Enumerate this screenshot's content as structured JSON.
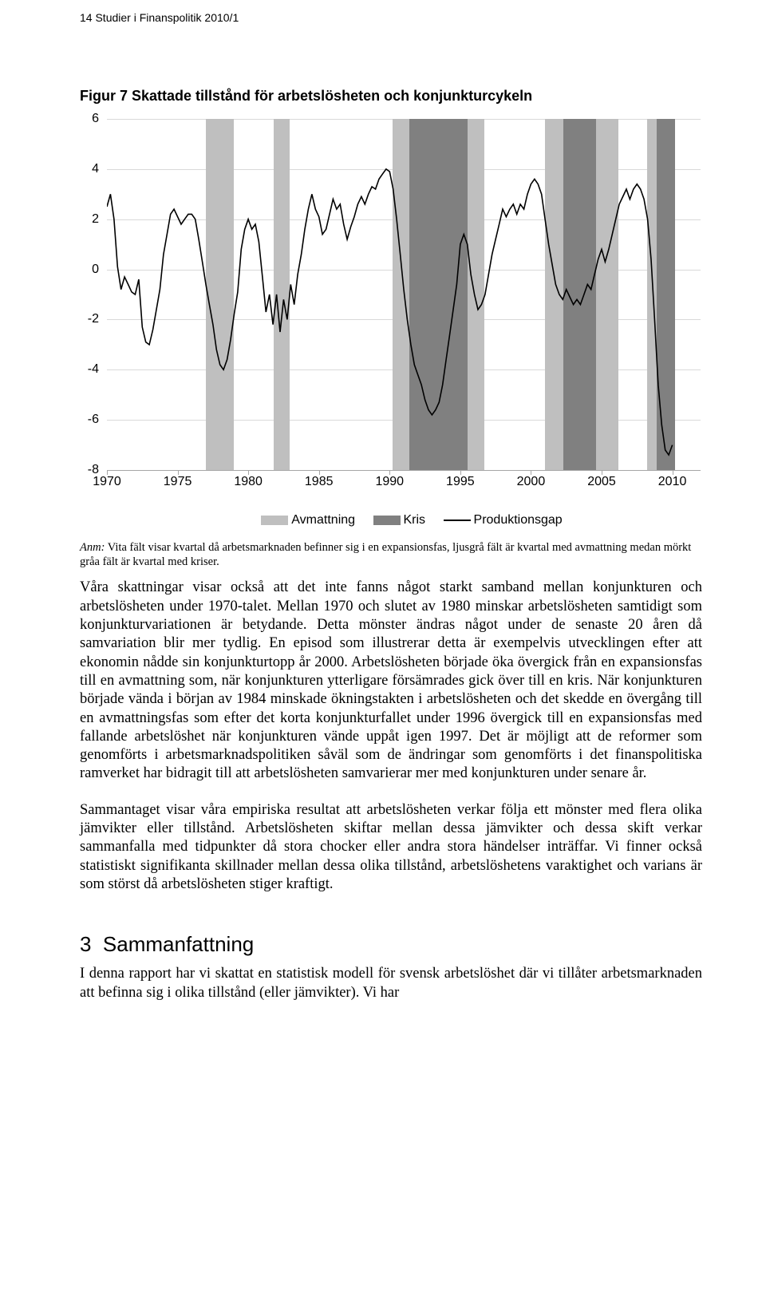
{
  "header": "14  Studier i Finanspolitik 2010/1",
  "figure": {
    "title": "Figur 7 Skattade tillstånd för arbetslösheten och konjunkturcykeln",
    "chart": {
      "type": "line-with-bands",
      "xlim": [
        1970,
        2012
      ],
      "ylim": [
        -8,
        6
      ],
      "yticks": [
        6,
        4,
        2,
        0,
        -2,
        -4,
        -6,
        -8
      ],
      "xticks": [
        1970,
        1975,
        1980,
        1985,
        1990,
        1995,
        2000,
        2005,
        2010
      ],
      "grid_color": "#d9d9d9",
      "axis_color": "#a6a6a6",
      "background_color": "#ffffff",
      "line_color": "#000000",
      "line_width": 1.6,
      "colors": {
        "avmattning": "#bfbfbf",
        "kris": "#808080"
      },
      "bands": [
        {
          "from": 1977.0,
          "to": 1979.0,
          "kind": "avmattning"
        },
        {
          "from": 1981.8,
          "to": 1982.9,
          "kind": "avmattning"
        },
        {
          "from": 1990.2,
          "to": 1991.4,
          "kind": "avmattning"
        },
        {
          "from": 1991.4,
          "to": 1995.5,
          "kind": "kris"
        },
        {
          "from": 1995.5,
          "to": 1996.7,
          "kind": "avmattning"
        },
        {
          "from": 2001.0,
          "to": 2002.3,
          "kind": "avmattning"
        },
        {
          "from": 2002.3,
          "to": 2004.6,
          "kind": "kris"
        },
        {
          "from": 2004.6,
          "to": 2006.2,
          "kind": "avmattning"
        },
        {
          "from": 2008.2,
          "to": 2008.9,
          "kind": "avmattning"
        },
        {
          "from": 2008.9,
          "to": 2010.2,
          "kind": "kris"
        }
      ],
      "series": [
        {
          "x": 1970.0,
          "y": 2.5
        },
        {
          "x": 1970.25,
          "y": 3.0
        },
        {
          "x": 1970.5,
          "y": 2.0
        },
        {
          "x": 1970.75,
          "y": 0.1
        },
        {
          "x": 1971.0,
          "y": -0.8
        },
        {
          "x": 1971.25,
          "y": -0.3
        },
        {
          "x": 1971.5,
          "y": -0.6
        },
        {
          "x": 1971.75,
          "y": -0.9
        },
        {
          "x": 1972.0,
          "y": -1.0
        },
        {
          "x": 1972.25,
          "y": -0.4
        },
        {
          "x": 1972.5,
          "y": -2.3
        },
        {
          "x": 1972.75,
          "y": -2.9
        },
        {
          "x": 1973.0,
          "y": -3.0
        },
        {
          "x": 1973.25,
          "y": -2.4
        },
        {
          "x": 1973.5,
          "y": -1.6
        },
        {
          "x": 1973.75,
          "y": -0.8
        },
        {
          "x": 1974.0,
          "y": 0.6
        },
        {
          "x": 1974.25,
          "y": 1.4
        },
        {
          "x": 1974.5,
          "y": 2.2
        },
        {
          "x": 1974.75,
          "y": 2.4
        },
        {
          "x": 1975.0,
          "y": 2.1
        },
        {
          "x": 1975.25,
          "y": 1.8
        },
        {
          "x": 1975.5,
          "y": 2.0
        },
        {
          "x": 1975.75,
          "y": 2.2
        },
        {
          "x": 1976.0,
          "y": 2.2
        },
        {
          "x": 1976.25,
          "y": 2.0
        },
        {
          "x": 1976.5,
          "y": 1.2
        },
        {
          "x": 1976.75,
          "y": 0.3
        },
        {
          "x": 1977.0,
          "y": -0.6
        },
        {
          "x": 1977.25,
          "y": -1.4
        },
        {
          "x": 1977.5,
          "y": -2.2
        },
        {
          "x": 1977.75,
          "y": -3.2
        },
        {
          "x": 1978.0,
          "y": -3.8
        },
        {
          "x": 1978.25,
          "y": -4.0
        },
        {
          "x": 1978.5,
          "y": -3.6
        },
        {
          "x": 1978.75,
          "y": -2.8
        },
        {
          "x": 1979.0,
          "y": -1.8
        },
        {
          "x": 1979.25,
          "y": -0.9
        },
        {
          "x": 1979.5,
          "y": 0.8
        },
        {
          "x": 1979.75,
          "y": 1.6
        },
        {
          "x": 1980.0,
          "y": 2.0
        },
        {
          "x": 1980.25,
          "y": 1.6
        },
        {
          "x": 1980.5,
          "y": 1.8
        },
        {
          "x": 1980.75,
          "y": 1.1
        },
        {
          "x": 1981.0,
          "y": -0.3
        },
        {
          "x": 1981.25,
          "y": -1.7
        },
        {
          "x": 1981.5,
          "y": -1.0
        },
        {
          "x": 1981.75,
          "y": -2.2
        },
        {
          "x": 1982.0,
          "y": -1.0
        },
        {
          "x": 1982.25,
          "y": -2.5
        },
        {
          "x": 1982.5,
          "y": -1.2
        },
        {
          "x": 1982.75,
          "y": -2.0
        },
        {
          "x": 1983.0,
          "y": -0.6
        },
        {
          "x": 1983.25,
          "y": -1.4
        },
        {
          "x": 1983.5,
          "y": -0.2
        },
        {
          "x": 1983.75,
          "y": 0.6
        },
        {
          "x": 1984.0,
          "y": 1.6
        },
        {
          "x": 1984.25,
          "y": 2.4
        },
        {
          "x": 1984.5,
          "y": 3.0
        },
        {
          "x": 1984.75,
          "y": 2.4
        },
        {
          "x": 1985.0,
          "y": 2.1
        },
        {
          "x": 1985.25,
          "y": 1.4
        },
        {
          "x": 1985.5,
          "y": 1.6
        },
        {
          "x": 1985.75,
          "y": 2.2
        },
        {
          "x": 1986.0,
          "y": 2.8
        },
        {
          "x": 1986.25,
          "y": 2.4
        },
        {
          "x": 1986.5,
          "y": 2.6
        },
        {
          "x": 1986.75,
          "y": 1.8
        },
        {
          "x": 1987.0,
          "y": 1.2
        },
        {
          "x": 1987.25,
          "y": 1.7
        },
        {
          "x": 1987.5,
          "y": 2.1
        },
        {
          "x": 1987.75,
          "y": 2.6
        },
        {
          "x": 1988.0,
          "y": 2.9
        },
        {
          "x": 1988.25,
          "y": 2.6
        },
        {
          "x": 1988.5,
          "y": 3.0
        },
        {
          "x": 1988.75,
          "y": 3.3
        },
        {
          "x": 1989.0,
          "y": 3.2
        },
        {
          "x": 1989.25,
          "y": 3.6
        },
        {
          "x": 1989.5,
          "y": 3.8
        },
        {
          "x": 1989.75,
          "y": 4.0
        },
        {
          "x": 1990.0,
          "y": 3.9
        },
        {
          "x": 1990.25,
          "y": 3.2
        },
        {
          "x": 1990.5,
          "y": 2.0
        },
        {
          "x": 1990.75,
          "y": 0.6
        },
        {
          "x": 1991.0,
          "y": -0.8
        },
        {
          "x": 1991.25,
          "y": -2.0
        },
        {
          "x": 1991.5,
          "y": -3.0
        },
        {
          "x": 1991.75,
          "y": -3.8
        },
        {
          "x": 1992.0,
          "y": -4.2
        },
        {
          "x": 1992.25,
          "y": -4.6
        },
        {
          "x": 1992.5,
          "y": -5.2
        },
        {
          "x": 1992.75,
          "y": -5.6
        },
        {
          "x": 1993.0,
          "y": -5.8
        },
        {
          "x": 1993.25,
          "y": -5.6
        },
        {
          "x": 1993.5,
          "y": -5.3
        },
        {
          "x": 1993.75,
          "y": -4.6
        },
        {
          "x": 1994.0,
          "y": -3.6
        },
        {
          "x": 1994.25,
          "y": -2.6
        },
        {
          "x": 1994.5,
          "y": -1.6
        },
        {
          "x": 1994.75,
          "y": -0.6
        },
        {
          "x": 1995.0,
          "y": 1.0
        },
        {
          "x": 1995.25,
          "y": 1.4
        },
        {
          "x": 1995.5,
          "y": 1.0
        },
        {
          "x": 1995.75,
          "y": -0.2
        },
        {
          "x": 1996.0,
          "y": -1.0
        },
        {
          "x": 1996.25,
          "y": -1.6
        },
        {
          "x": 1996.5,
          "y": -1.4
        },
        {
          "x": 1996.75,
          "y": -1.0
        },
        {
          "x": 1997.0,
          "y": -0.2
        },
        {
          "x": 1997.25,
          "y": 0.6
        },
        {
          "x": 1997.5,
          "y": 1.2
        },
        {
          "x": 1997.75,
          "y": 1.8
        },
        {
          "x": 1998.0,
          "y": 2.4
        },
        {
          "x": 1998.25,
          "y": 2.1
        },
        {
          "x": 1998.5,
          "y": 2.4
        },
        {
          "x": 1998.75,
          "y": 2.6
        },
        {
          "x": 1999.0,
          "y": 2.2
        },
        {
          "x": 1999.25,
          "y": 2.6
        },
        {
          "x": 1999.5,
          "y": 2.4
        },
        {
          "x": 1999.75,
          "y": 3.0
        },
        {
          "x": 2000.0,
          "y": 3.4
        },
        {
          "x": 2000.25,
          "y": 3.6
        },
        {
          "x": 2000.5,
          "y": 3.4
        },
        {
          "x": 2000.75,
          "y": 3.0
        },
        {
          "x": 2001.0,
          "y": 2.0
        },
        {
          "x": 2001.25,
          "y": 1.0
        },
        {
          "x": 2001.5,
          "y": 0.2
        },
        {
          "x": 2001.75,
          "y": -0.6
        },
        {
          "x": 2002.0,
          "y": -1.0
        },
        {
          "x": 2002.25,
          "y": -1.2
        },
        {
          "x": 2002.5,
          "y": -0.8
        },
        {
          "x": 2002.75,
          "y": -1.1
        },
        {
          "x": 2003.0,
          "y": -1.4
        },
        {
          "x": 2003.25,
          "y": -1.2
        },
        {
          "x": 2003.5,
          "y": -1.4
        },
        {
          "x": 2003.75,
          "y": -1.0
        },
        {
          "x": 2004.0,
          "y": -0.6
        },
        {
          "x": 2004.25,
          "y": -0.8
        },
        {
          "x": 2004.5,
          "y": -0.2
        },
        {
          "x": 2004.75,
          "y": 0.4
        },
        {
          "x": 2005.0,
          "y": 0.8
        },
        {
          "x": 2005.25,
          "y": 0.3
        },
        {
          "x": 2005.5,
          "y": 0.8
        },
        {
          "x": 2005.75,
          "y": 1.4
        },
        {
          "x": 2006.0,
          "y": 2.0
        },
        {
          "x": 2006.25,
          "y": 2.6
        },
        {
          "x": 2006.5,
          "y": 2.9
        },
        {
          "x": 2006.75,
          "y": 3.2
        },
        {
          "x": 2007.0,
          "y": 2.8
        },
        {
          "x": 2007.25,
          "y": 3.2
        },
        {
          "x": 2007.5,
          "y": 3.4
        },
        {
          "x": 2007.75,
          "y": 3.2
        },
        {
          "x": 2008.0,
          "y": 2.8
        },
        {
          "x": 2008.25,
          "y": 2.0
        },
        {
          "x": 2008.5,
          "y": 0.4
        },
        {
          "x": 2008.75,
          "y": -2.0
        },
        {
          "x": 2009.0,
          "y": -4.6
        },
        {
          "x": 2009.25,
          "y": -6.2
        },
        {
          "x": 2009.5,
          "y": -7.2
        },
        {
          "x": 2009.75,
          "y": -7.4
        },
        {
          "x": 2010.0,
          "y": -7.0
        }
      ]
    },
    "legend": {
      "avmattning": "Avmattning",
      "kris": "Kris",
      "line": "Produktionsgap"
    },
    "anm": "Anm: Vita fält visar kvartal då arbetsmarknaden befinner sig i en expansionsfas, ljusgrå fält är kvartal med avmattning medan mörkt gråa fält är kvartal med kriser."
  },
  "para1": "Våra skattningar visar också att det inte fanns något starkt samband mellan konjunkturen och arbetslösheten under 1970-talet. Mellan 1970 och slutet av 1980 minskar arbetslösheten samtidigt som konjunkturvariationen är betydande. Detta mönster ändras något under de senaste 20 åren då samvariation blir mer tydlig. En episod som illustrerar detta är exempelvis utvecklingen efter att ekonomin nådde sin konjunkturtopp år 2000. Arbetslösheten började öka övergick från en expansionsfas till en avmattning som, när konjunkturen ytterligare försämrades gick över till en kris. När konjunkturen började vända i början av 1984 minskade ökningstakten i arbetslösheten och det skedde en övergång till en avmattningsfas som efter det korta konjunkturfallet under 1996 övergick till en expansionsfas med fallande arbetslöshet när konjunkturen vände uppåt igen 1997. Det är möjligt att de reformer som genomförts i arbetsmarknadspolitiken såväl som de ändringar som genomförts i det finanspolitiska ramverket har bidragit till att arbetslösheten samvarierar mer med konjunkturen under senare år.",
  "para2": "Sammantaget visar våra empiriska resultat att arbetslösheten verkar följa ett mönster med flera olika jämvikter eller tillstånd. Arbetslösheten skiftar mellan dessa jämvikter och dessa skift verkar sammanfalla med tidpunkter då stora chocker eller andra stora händelser inträffar. Vi finner också statistiskt signifikanta skillnader mellan dessa olika tillstånd, arbetslöshetens varaktighet och varians är som störst då arbetslösheten stiger kraftigt.",
  "section": {
    "num": "3",
    "title": "Sammanfattning"
  },
  "para3": "I denna rapport har vi skattat en statistisk modell för svensk arbetslöshet där vi tillåter arbetsmarknaden att befinna sig i olika tillstånd (eller jämvikter). Vi har"
}
